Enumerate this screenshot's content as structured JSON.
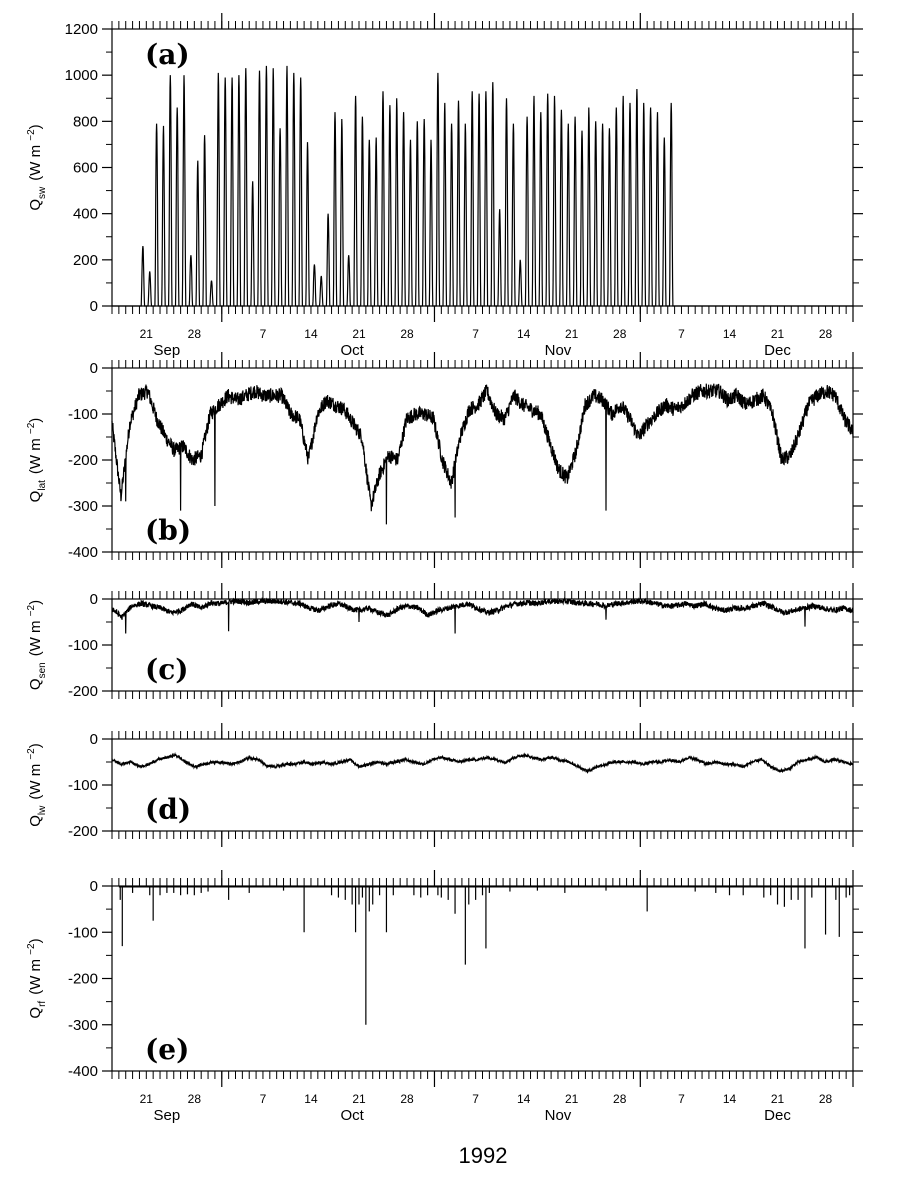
{
  "figure": {
    "year_label": "1992"
  },
  "x_axis": {
    "day_range": [
      0,
      108
    ],
    "date_tick_labels": [
      {
        "label": "21",
        "day": 5
      },
      {
        "label": "28",
        "day": 12
      },
      {
        "label": "7",
        "day": 22
      },
      {
        "label": "14",
        "day": 29
      },
      {
        "label": "21",
        "day": 36
      },
      {
        "label": "28",
        "day": 43
      },
      {
        "label": "7",
        "day": 53
      },
      {
        "label": "14",
        "day": 60
      },
      {
        "label": "21",
        "day": 67
      },
      {
        "label": "28",
        "day": 74
      },
      {
        "label": "7",
        "day": 83
      },
      {
        "label": "14",
        "day": 90
      },
      {
        "label": "21",
        "day": 97
      },
      {
        "label": "28",
        "day": 104
      }
    ],
    "month_boundaries": [
      16,
      47,
      77,
      108
    ],
    "month_labels": [
      {
        "label": "Sep",
        "day": 8
      },
      {
        "label": "Oct",
        "day": 35
      },
      {
        "label": "Nov",
        "day": 65
      },
      {
        "label": "Dec",
        "day": 97
      }
    ]
  },
  "chart_data": [
    {
      "type": "line",
      "panel": "(a)",
      "ylabel": "Q",
      "ylabel_sub": "sw",
      "ylabel_units": "(W m",
      "ylabel_exp": "−2",
      "ylim": [
        0,
        1200
      ],
      "yticks": [
        0,
        200,
        400,
        600,
        800,
        1000,
        1200
      ],
      "kind": "diurnal",
      "daily_peaks": [
        260,
        150,
        790,
        780,
        1000,
        860,
        1000,
        220,
        630,
        740,
        110,
        1010,
        990,
        990,
        1000,
        1030,
        540,
        1020,
        1040,
        1030,
        770,
        1040,
        1010,
        990,
        710,
        180,
        130,
        400,
        840,
        810,
        220,
        910,
        820,
        720,
        730,
        930,
        870,
        900,
        840,
        720,
        800,
        810,
        720,
        1010,
        880,
        790,
        890,
        790,
        930,
        920,
        930,
        970,
        420,
        900,
        790,
        200,
        820,
        910,
        840,
        920,
        910,
        850,
        790,
        820,
        760,
        860,
        800,
        790,
        770,
        860,
        910,
        880,
        940,
        880,
        860,
        840,
        730,
        880
      ]
    },
    {
      "type": "line",
      "panel": "(b)",
      "ylabel": "Q",
      "ylabel_sub": "lat",
      "ylabel_units": "(W m",
      "ylabel_exp": "−2",
      "ylim": [
        -400,
        0
      ],
      "yticks": [
        -400,
        -300,
        -200,
        -100,
        0
      ],
      "kind": "noisy",
      "daily_means": [
        -120,
        -280,
        -120,
        -60,
        -50,
        -110,
        -150,
        -180,
        -170,
        -200,
        -190,
        -100,
        -80,
        -60,
        -70,
        -60,
        -50,
        -60,
        -60,
        -60,
        -100,
        -110,
        -200,
        -100,
        -70,
        -80,
        -90,
        -120,
        -150,
        -300,
        -230,
        -190,
        -200,
        -110,
        -100,
        -100,
        -110,
        -200,
        -250,
        -150,
        -90,
        -80,
        -50,
        -100,
        -110,
        -60,
        -80,
        -90,
        -100,
        -160,
        -220,
        -240,
        -180,
        -80,
        -60,
        -70,
        -100,
        -80,
        -110,
        -150,
        -120,
        -100,
        -80,
        -90,
        -80,
        -60,
        -50,
        -50,
        -50,
        -70,
        -60,
        -80,
        -70,
        -60,
        -100,
        -200,
        -190,
        -140,
        -80,
        -60,
        -50,
        -60,
        -110,
        -140
      ],
      "spikes": [
        [
          2,
          -290
        ],
        [
          10,
          -310
        ],
        [
          15,
          -300
        ],
        [
          40,
          -340
        ],
        [
          50,
          -325
        ],
        [
          72,
          -310
        ]
      ]
    },
    {
      "type": "line",
      "panel": "(c)",
      "ylabel": "Q",
      "ylabel_sub": "sen",
      "ylabel_units": "(W m",
      "ylabel_exp": "−2",
      "ylim": [
        -200,
        0
      ],
      "yticks": [
        -200,
        -100,
        0
      ],
      "kind": "noisy",
      "daily_means": [
        -20,
        -40,
        -15,
        -10,
        -15,
        -20,
        -30,
        -25,
        -10,
        -20,
        -8,
        -10,
        -5,
        -5,
        -8,
        -5,
        -5,
        -5,
        -8,
        -10,
        -20,
        -25,
        -15,
        -10,
        -20,
        -25,
        -20,
        -30,
        -35,
        -20,
        -15,
        -20,
        -35,
        -25,
        -20,
        -15,
        -10,
        -20,
        -30,
        -25,
        -15,
        -10,
        -8,
        -10,
        -5,
        -5,
        -5,
        -8,
        -10,
        -10,
        -15,
        -10,
        -8,
        -5,
        -5,
        -10,
        -15,
        -15,
        -10,
        -15,
        -10,
        -20,
        -25,
        -20,
        -20,
        -15,
        -10,
        -20,
        -30,
        -25,
        -20,
        -15,
        -20,
        -25,
        -20,
        -25
      ],
      "spikes": [
        [
          2,
          -75
        ],
        [
          17,
          -70
        ],
        [
          36,
          -50
        ],
        [
          50,
          -75
        ],
        [
          72,
          -45
        ],
        [
          101,
          -60
        ]
      ]
    },
    {
      "type": "line",
      "panel": "(d)",
      "ylabel": "Q",
      "ylabel_sub": "lw",
      "ylabel_units": "(W m",
      "ylabel_exp": "−2",
      "ylim": [
        -200,
        0
      ],
      "yticks": [
        -200,
        -100,
        0
      ],
      "kind": "noisy",
      "daily_means": [
        -45,
        -55,
        -50,
        -60,
        -55,
        -45,
        -40,
        -35,
        -50,
        -60,
        -55,
        -50,
        -50,
        -55,
        -50,
        -40,
        -45,
        -60,
        -60,
        -55,
        -55,
        -50,
        -55,
        -50,
        -55,
        -50,
        -45,
        -60,
        -55,
        -50,
        -55,
        -50,
        -45,
        -50,
        -55,
        -45,
        -40,
        -45,
        -50,
        -45,
        -45,
        -40,
        -45,
        -50,
        -40,
        -35,
        -40,
        -45,
        -40,
        -45,
        -50,
        -60,
        -70,
        -60,
        -55,
        -50,
        -50,
        -50,
        -55,
        -50,
        -50,
        -45,
        -50,
        -40,
        -45,
        -55,
        -50,
        -55,
        -55,
        -60,
        -50,
        -45,
        -60,
        -70,
        -65,
        -50,
        -45,
        -40,
        -50,
        -45,
        -50,
        -55
      ]
    },
    {
      "type": "line",
      "panel": "(e)",
      "ylabel": "Q",
      "ylabel_sub": "rf",
      "ylabel_units": "(W m",
      "ylabel_exp": "−2",
      "ylim": [
        -400,
        0
      ],
      "yticks": [
        -400,
        -300,
        -200,
        -100,
        0
      ],
      "kind": "spikes",
      "spikes": [
        [
          1.2,
          -30
        ],
        [
          1.5,
          -130
        ],
        [
          3,
          -15
        ],
        [
          5.5,
          -20
        ],
        [
          6,
          -75
        ],
        [
          7,
          -20
        ],
        [
          8,
          -15
        ],
        [
          9,
          -15
        ],
        [
          10,
          -20
        ],
        [
          11,
          -18
        ],
        [
          12,
          -20
        ],
        [
          13,
          -15
        ],
        [
          14,
          -12
        ],
        [
          17,
          -30
        ],
        [
          20,
          -15
        ],
        [
          25,
          -10
        ],
        [
          28,
          -100
        ],
        [
          32,
          -20
        ],
        [
          33,
          -25
        ],
        [
          34,
          -30
        ],
        [
          35,
          -40
        ],
        [
          35.5,
          -100
        ],
        [
          36,
          -40
        ],
        [
          36.5,
          -25
        ],
        [
          37,
          -300
        ],
        [
          37.5,
          -55
        ],
        [
          38,
          -40
        ],
        [
          39,
          -20
        ],
        [
          40,
          -100
        ],
        [
          41,
          -20
        ],
        [
          44,
          -20
        ],
        [
          45,
          -25
        ],
        [
          46,
          -20
        ],
        [
          47.5,
          -20
        ],
        [
          48,
          -25
        ],
        [
          49,
          -30
        ],
        [
          50,
          -60
        ],
        [
          51.5,
          -170
        ],
        [
          52,
          -40
        ],
        [
          53,
          -30
        ],
        [
          54,
          -20
        ],
        [
          54.5,
          -135
        ],
        [
          55,
          -15
        ],
        [
          58,
          -12
        ],
        [
          62,
          -10
        ],
        [
          66,
          -15
        ],
        [
          72,
          -10
        ],
        [
          78,
          -55
        ],
        [
          85,
          -12
        ],
        [
          88,
          -15
        ],
        [
          90,
          -20
        ],
        [
          92,
          -20
        ],
        [
          95,
          -25
        ],
        [
          96,
          -20
        ],
        [
          97,
          -40
        ],
        [
          98,
          -45
        ],
        [
          99,
          -30
        ],
        [
          100,
          -30
        ],
        [
          101,
          -135
        ],
        [
          102,
          -25
        ],
        [
          104,
          -105
        ],
        [
          105.5,
          -30
        ],
        [
          106,
          -110
        ],
        [
          107,
          -25
        ],
        [
          107.5,
          -20
        ]
      ]
    }
  ]
}
